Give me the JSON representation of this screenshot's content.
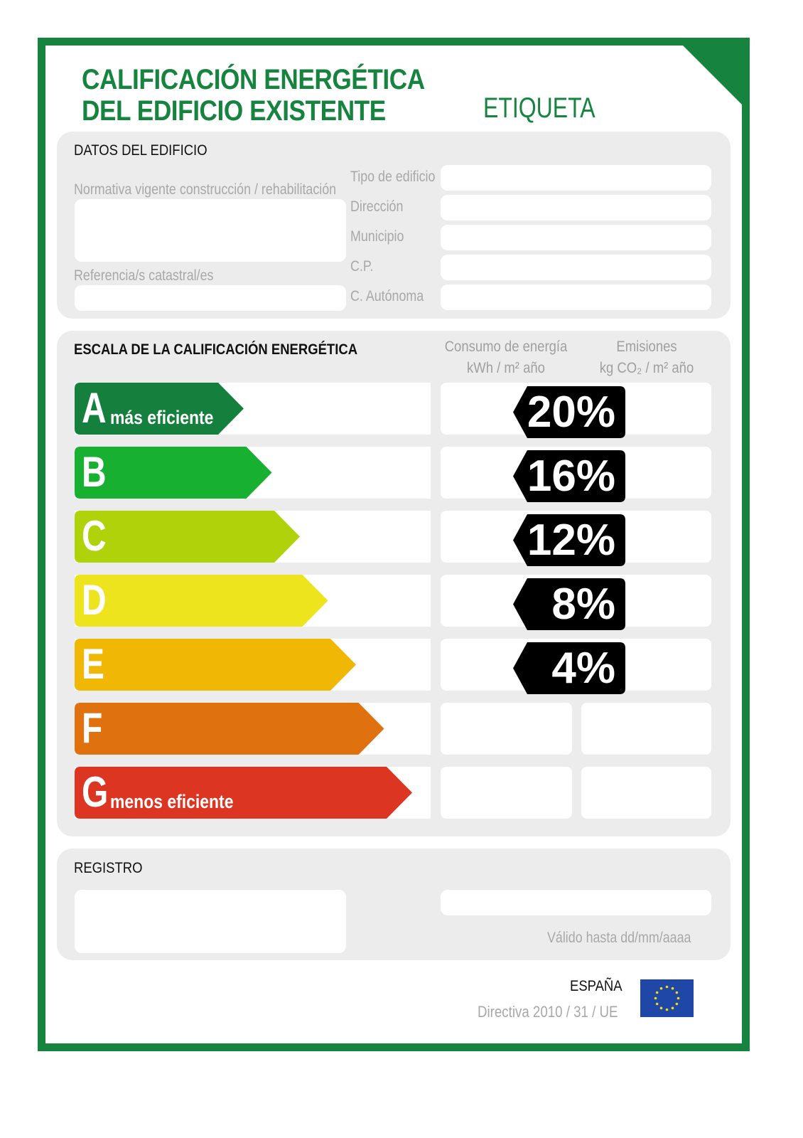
{
  "header": {
    "title_line1": "CALIFICACIÓN ENERGÉTICA",
    "title_line2": "DEL EDIFICIO EXISTENTE",
    "label": "ETIQUETA"
  },
  "datos": {
    "heading": "DATOS DEL EDIFICIO",
    "normativa": "Normativa vigente construcción / rehabilitación",
    "referencia": "Referencia/s catastral/es",
    "fields": [
      "Tipo de edificio",
      "Dirección",
      "Municipio",
      "C.P.",
      "C. Autónoma"
    ]
  },
  "escala": {
    "heading": "ESCALA DE LA CALIFICACIÓN ENERGÉTICA",
    "col1_line1": "Consumo de energía",
    "col1_line2": "kWh / m² año",
    "col2_line1": "Emisiones",
    "col2_line2": "kg CO₂ / m² año",
    "classes": [
      {
        "letter": "A",
        "sub": "más eficiente",
        "color": "#15803d",
        "badge": "20%"
      },
      {
        "letter": "B",
        "sub": "",
        "color": "#18b030",
        "badge": "16%"
      },
      {
        "letter": "C",
        "sub": "",
        "color": "#b0d20a",
        "badge": "12%"
      },
      {
        "letter": "D",
        "sub": "",
        "color": "#ede41d",
        "badge": "8%"
      },
      {
        "letter": "E",
        "sub": "",
        "color": "#f1b705",
        "badge": "4%"
      },
      {
        "letter": "F",
        "sub": "",
        "color": "#df710f",
        "badge": ""
      },
      {
        "letter": "G",
        "sub": "menos eficiente",
        "color": "#dc3521",
        "badge": ""
      }
    ]
  },
  "registro": {
    "heading": "REGISTRO",
    "valid": "Válido hasta dd/mm/aaaa"
  },
  "footer": {
    "country": "ESPAÑA",
    "directive": "Directiva 2010 / 31 / UE",
    "flag": "eu-flag"
  },
  "colors": {
    "brand": "#16843f",
    "panel": "#ececec"
  }
}
